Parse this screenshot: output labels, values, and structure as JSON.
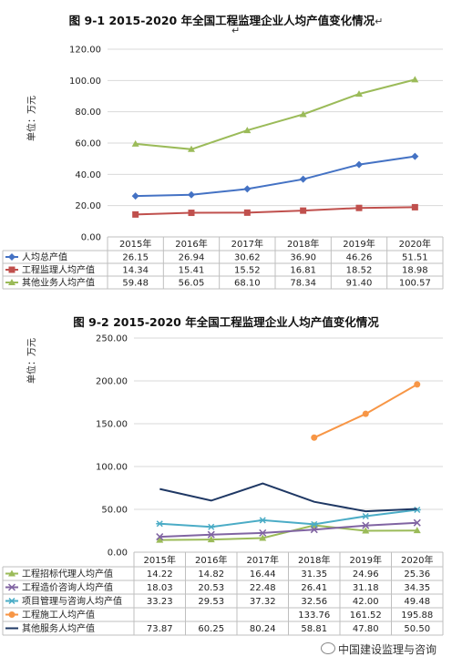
{
  "chart_data": [
    {
      "type": "line",
      "title": "图 9-1  2015-2020 年全国工程监理企业人均产值变化情况",
      "title_mark": "↵",
      "after_mark": "↵",
      "ylabel": "单位：万元",
      "ylim": [
        0,
        120
      ],
      "ytick_labels": [
        "0.00",
        "20.00",
        "40.00",
        "60.00",
        "80.00",
        "100.00",
        "120.00"
      ],
      "categories": [
        "2015年",
        "2016年",
        "2017年",
        "2018年",
        "2019年",
        "2020年"
      ],
      "grid": true,
      "legend": "data-table",
      "series": [
        {
          "name": "人均总产值",
          "color": "#4472C4",
          "marker": "diamond",
          "values": [
            26.15,
            26.94,
            30.62,
            36.9,
            46.26,
            51.51
          ],
          "labels": [
            "26.15",
            "26.94",
            "30.62",
            "36.90",
            "46.26",
            "51.51"
          ]
        },
        {
          "name": "工程监理人均产值",
          "color": "#C0504D",
          "marker": "square",
          "values": [
            14.34,
            15.41,
            15.52,
            16.81,
            18.52,
            18.98
          ],
          "labels": [
            "14.34",
            "15.41",
            "15.52",
            "16.81",
            "18.52",
            "18.98"
          ]
        },
        {
          "name": "其他业务人均产值",
          "color": "#9BBB59",
          "marker": "triangle",
          "values": [
            59.48,
            56.05,
            68.1,
            78.34,
            91.4,
            100.57
          ],
          "labels": [
            "59.48",
            "56.05",
            "68.10",
            "78.34",
            "91.40",
            "100.57"
          ]
        }
      ]
    },
    {
      "type": "line",
      "title": "图 9-2  2015-2020 年全国工程监理企业人均产值变化情况",
      "ylabel": "单位：万元",
      "ylim": [
        0,
        250
      ],
      "ytick_labels": [
        "0.00",
        "50.00",
        "100.00",
        "150.00",
        "200.00",
        "250.00"
      ],
      "categories": [
        "2015年",
        "2016年",
        "2017年",
        "2018年",
        "2019年",
        "2020年"
      ],
      "grid": true,
      "legend": "data-table",
      "series": [
        {
          "name": "工程招标代理人均产值",
          "color": "#9BBB59",
          "marker": "triangle",
          "values": [
            14.22,
            14.82,
            16.44,
            31.35,
            24.96,
            25.36
          ],
          "labels": [
            "14.22",
            "14.82",
            "16.44",
            "31.35",
            "24.96",
            "25.36"
          ]
        },
        {
          "name": "工程造价咨询人均产值",
          "color": "#8064A2",
          "marker": "x",
          "values": [
            18.03,
            20.53,
            22.48,
            26.41,
            31.18,
            34.35
          ],
          "labels": [
            "18.03",
            "20.53",
            "22.48",
            "26.41",
            "31.18",
            "34.35"
          ]
        },
        {
          "name": "项目管理与咨询人均产值",
          "color": "#4BACC6",
          "marker": "star",
          "values": [
            33.23,
            29.53,
            37.32,
            32.56,
            42.0,
            49.48
          ],
          "labels": [
            "33.23",
            "29.53",
            "37.32",
            "32.56",
            "42.00",
            "49.48"
          ]
        },
        {
          "name": "工程施工人均产值",
          "color": "#F79646",
          "marker": "circle",
          "values": [
            null,
            null,
            null,
            133.76,
            161.52,
            195.88
          ],
          "labels": [
            "",
            "",
            "",
            "133.76",
            "161.52",
            "195.88"
          ]
        },
        {
          "name": "其他服务人均产值",
          "color": "#1F3864",
          "marker": "line",
          "values": [
            73.87,
            60.25,
            80.24,
            58.81,
            47.8,
            50.5
          ],
          "labels": [
            "73.87",
            "60.25",
            "80.24",
            "58.81",
            "47.80",
            "50.50"
          ]
        }
      ]
    }
  ],
  "watermark": {
    "text": "中国建设监理与咨询",
    "icon": "wechat-icon"
  }
}
